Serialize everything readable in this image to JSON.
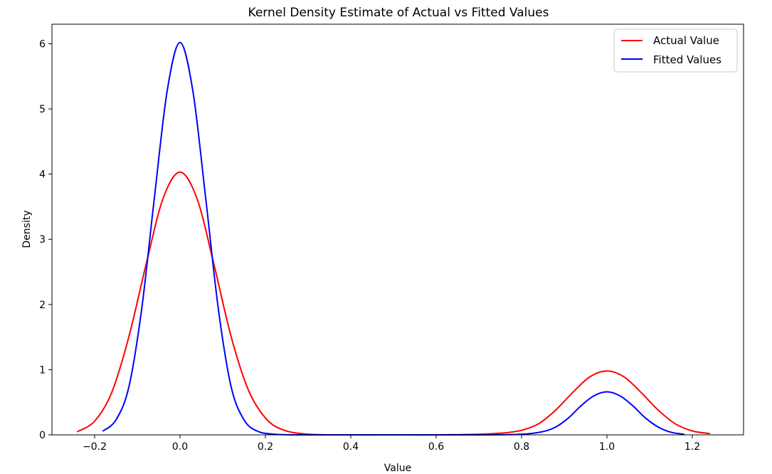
{
  "chart_data": {
    "type": "line",
    "title": "Kernel Density Estimate of Actual vs Fitted Values",
    "xlabel": "Value",
    "ylabel": "Density",
    "xlim": [
      -0.3,
      1.32
    ],
    "ylim": [
      0,
      6.3
    ],
    "xticks": [
      -0.2,
      0.0,
      0.2,
      0.4,
      0.6,
      0.8,
      1.0,
      1.2
    ],
    "xtick_labels": [
      "−0.2",
      "0.0",
      "0.2",
      "0.4",
      "0.6",
      "0.8",
      "1.0",
      "1.2"
    ],
    "yticks": [
      0,
      1,
      2,
      3,
      4,
      5,
      6
    ],
    "ytick_labels": [
      "0",
      "1",
      "2",
      "3",
      "4",
      "5",
      "6"
    ],
    "grid": false,
    "legend_position": "top-right",
    "series": [
      {
        "name": "Actual Value",
        "color": "#ff0000",
        "x": [
          -0.24,
          -0.2,
          -0.16,
          -0.12,
          -0.08,
          -0.04,
          0.0,
          0.04,
          0.08,
          0.12,
          0.16,
          0.2,
          0.24,
          0.3,
          0.4,
          0.5,
          0.6,
          0.7,
          0.76,
          0.8,
          0.84,
          0.88,
          0.92,
          0.96,
          1.0,
          1.04,
          1.08,
          1.12,
          1.16,
          1.2,
          1.24
        ],
        "y": [
          0.05,
          0.21,
          0.65,
          1.5,
          2.6,
          3.62,
          4.03,
          3.62,
          2.6,
          1.5,
          0.69,
          0.26,
          0.08,
          0.01,
          0.0,
          0.0,
          0.0,
          0.01,
          0.03,
          0.07,
          0.17,
          0.38,
          0.65,
          0.89,
          0.98,
          0.89,
          0.65,
          0.38,
          0.17,
          0.06,
          0.02
        ]
      },
      {
        "name": "Fitted Values",
        "color": "#0000ff",
        "x": [
          -0.18,
          -0.15,
          -0.12,
          -0.09,
          -0.06,
          -0.03,
          0.0,
          0.03,
          0.06,
          0.09,
          0.12,
          0.15,
          0.18,
          0.22,
          0.3,
          0.5,
          0.7,
          0.8,
          0.85,
          0.88,
          0.91,
          0.94,
          0.97,
          1.0,
          1.03,
          1.06,
          1.09,
          1.12,
          1.15,
          1.18
        ],
        "y": [
          0.06,
          0.23,
          0.73,
          1.92,
          3.64,
          5.28,
          6.02,
          5.28,
          3.64,
          1.92,
          0.73,
          0.23,
          0.06,
          0.01,
          0.0,
          0.0,
          0.0,
          0.01,
          0.05,
          0.12,
          0.26,
          0.45,
          0.6,
          0.66,
          0.6,
          0.45,
          0.26,
          0.12,
          0.04,
          0.01
        ]
      }
    ]
  }
}
